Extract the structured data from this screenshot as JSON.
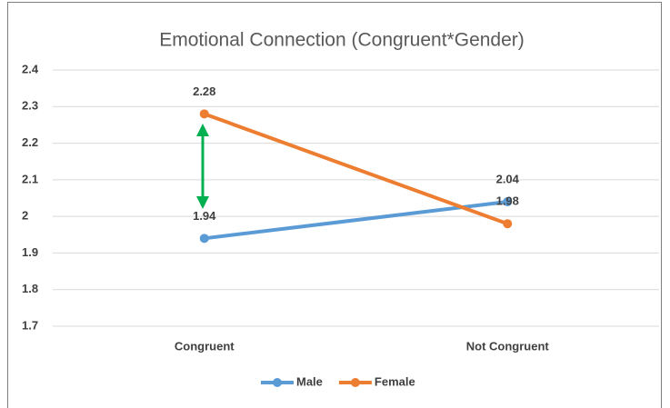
{
  "chart_data": {
    "type": "line",
    "title": "Emotional Connection (Congruent*Gender)",
    "categories": [
      "Congruent",
      "Not Congruent"
    ],
    "series": [
      {
        "name": "Male",
        "color": "#5b9bd5",
        "values": [
          1.94,
          2.04
        ]
      },
      {
        "name": "Female",
        "color": "#ed7d31",
        "values": [
          2.28,
          1.98
        ]
      }
    ],
    "ylim": [
      1.7,
      2.4
    ],
    "yticks": [
      1.7,
      1.8,
      1.9,
      2,
      2.1,
      2.2,
      2.3,
      2.4
    ],
    "grid": true,
    "legend": "bottom"
  }
}
